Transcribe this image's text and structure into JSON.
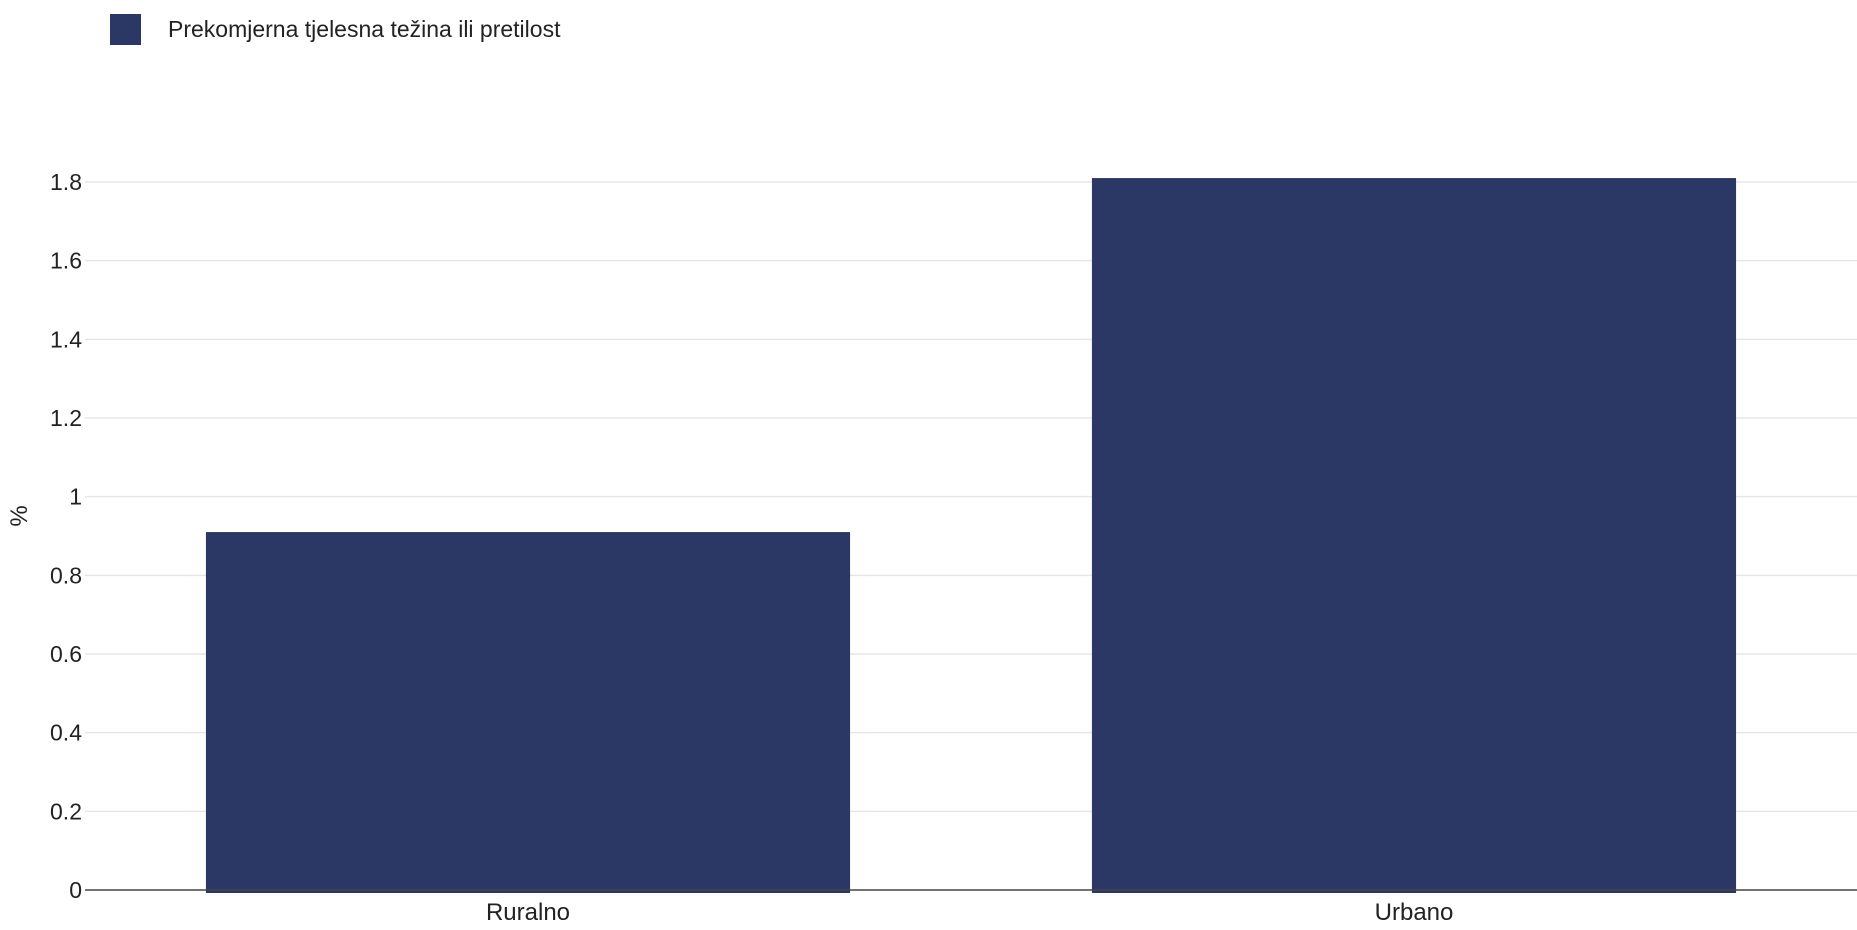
{
  "legend": {
    "label": "Prekomjerna tjelesna težina ili pretilost",
    "color": "#2b3764"
  },
  "chart_data": {
    "type": "bar",
    "categories": [
      "Ruralno",
      "Urbano"
    ],
    "series": [
      {
        "name": "Prekomjerna tjelesna težina ili pretilost",
        "values": [
          0.91,
          1.81
        ],
        "color": "#2b3764"
      }
    ],
    "ylabel": "%",
    "xlabel": "",
    "ylim": [
      0,
      1.8
    ],
    "yticks": [
      "0",
      "0.2",
      "0.4",
      "0.6",
      "0.8",
      "1",
      "1.2",
      "1.4",
      "1.6",
      "1.8"
    ],
    "grid": true,
    "legend_position": "top-left",
    "colors": {
      "bar": "#2b3764",
      "grid": "#e6e6e6",
      "axis": "#444444",
      "text": "#222222"
    }
  }
}
